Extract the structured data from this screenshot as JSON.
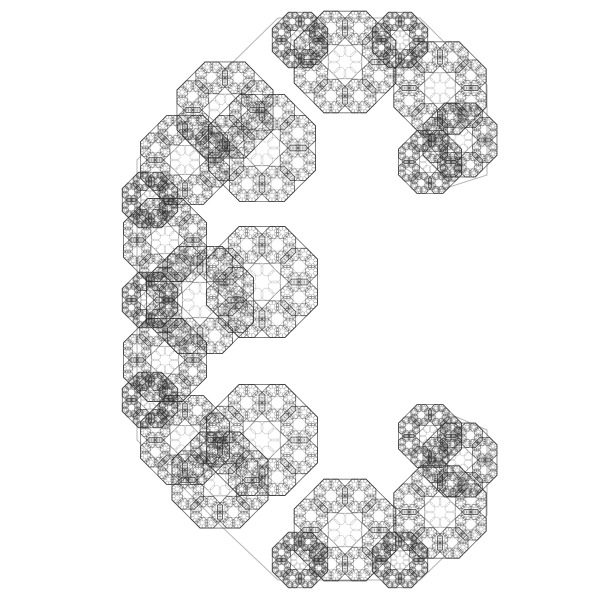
{
  "canvas": {
    "background": "#ffffff",
    "stroke_color": "#2b2b2b",
    "description_name": "fractal-octagon-c-shape"
  },
  "fractal": {
    "shape": "octagon",
    "recursion_depth": 3,
    "scale_ratio": 0.33
  }
}
